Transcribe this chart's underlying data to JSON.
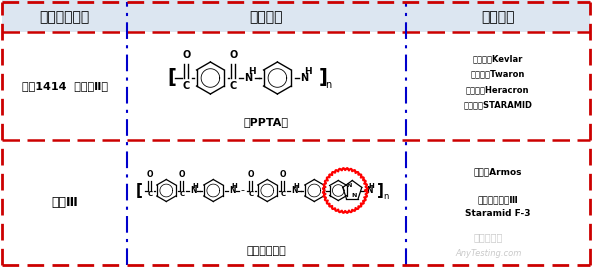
{
  "col1_header": "对位芳纶种类",
  "col2_header": "化学结构",
  "col3_header": "代表产品",
  "row1_col1": "芳纶1414  （芳纶Ⅱ）",
  "row1_col2_label": "（PPTA）",
  "row1_col3_lines": [
    "美国杜邦Kevlar",
    "日本帝人Twaron",
    "韩国可隆Heracron",
    "中蓝晨光STARAMID"
  ],
  "row2_col1": "芳纶Ⅲ",
  "row2_col2_label": "（杂环芳纶）",
  "row2_col3_lines": [
    "俄罗斯Armos",
    "",
    "中蓝晨光芳纶Ⅲ",
    "Staramid F-3"
  ],
  "bg_color": "#ffffff",
  "header_bg": "#dce6f1",
  "red": "#cc0000",
  "blue": "#0000cc",
  "black": "#000000",
  "gray": "#888888",
  "watermark1": "嘉峪检测网",
  "watermark2": "AnyTesting.com",
  "c1": 0.215,
  "c2": 0.685,
  "r_header": 0.845,
  "r_mid": 0.495
}
